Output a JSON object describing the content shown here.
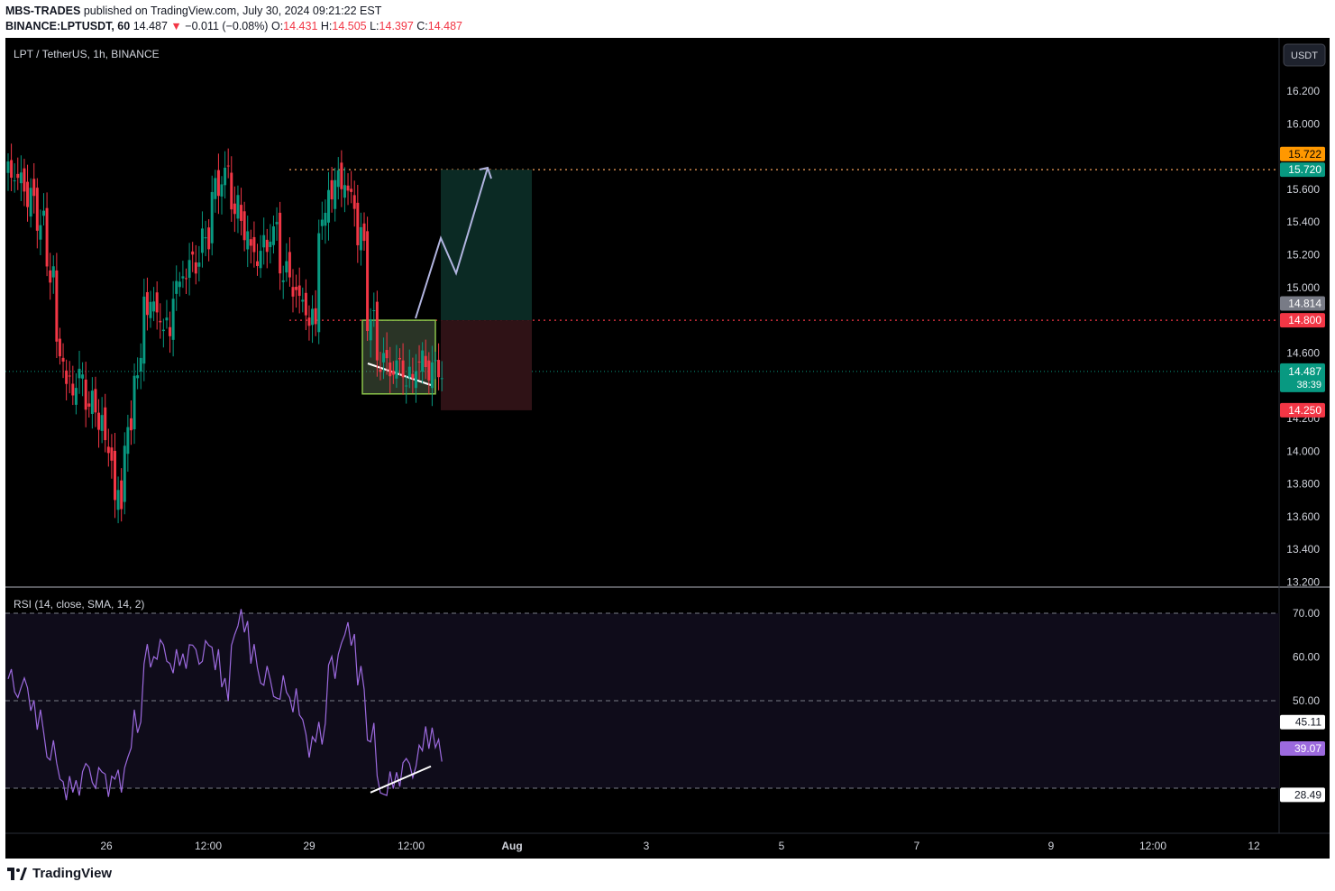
{
  "header": {
    "author": "MBS-TRADES",
    "published": "published on TradingView.com, July 30, 2024 09:21:22 EST",
    "symbol": "BINANCE:LPTUSDT, 60",
    "last": "14.487",
    "arrow": "▼",
    "change": "−0.011 (−0.08%)",
    "o_label": "O:",
    "o": "14.431",
    "h_label": "H:",
    "h": "14.505",
    "l_label": "L:",
    "l": "14.397",
    "c_label": "C:",
    "c": "14.487"
  },
  "chart": {
    "title": "LPT / TetherUS, 1h, BINANCE",
    "currency_button": "USDT",
    "colors": {
      "up": "#089981",
      "down": "#f23645",
      "rsi": "#9c6ade",
      "bg": "#000000"
    },
    "price_ticks": [
      "16.200",
      "16.000",
      "15.600",
      "15.400",
      "15.200",
      "15.000",
      "14.600",
      "14.200",
      "14.000",
      "13.800",
      "13.600",
      "13.400",
      "13.200"
    ],
    "price_ticks_values": [
      16.2,
      16.0,
      15.6,
      15.4,
      15.2,
      15.0,
      14.6,
      14.2,
      14.0,
      13.8,
      13.6,
      13.4,
      13.2
    ],
    "badges": [
      {
        "text": "15.722",
        "value": 15.722,
        "color": "#ff9800",
        "fg": "#000000"
      },
      {
        "text": "15.720",
        "value": 15.72,
        "color": "#089981",
        "fg": "#ffffff"
      },
      {
        "text": "14.814",
        "value": 14.814,
        "color": "#787b86",
        "fg": "#ffffff"
      },
      {
        "text": "14.800",
        "value": 14.8,
        "color": "#f23645",
        "fg": "#ffffff"
      },
      {
        "text": "14.250",
        "value": 14.25,
        "color": "#f23645",
        "fg": "#ffffff"
      }
    ],
    "last_price_badge": {
      "text": "14.487",
      "countdown": "38:39",
      "value": 14.487,
      "color": "#089981"
    },
    "rsi_title": "RSI (14, close, SMA, 14, 2)",
    "rsi_ticks": [
      "70.00",
      "60.00",
      "50.00"
    ],
    "rsi_ticks_values": [
      70,
      60,
      50
    ],
    "rsi_badges": [
      {
        "text": "45.11",
        "value": 45.11,
        "color": "#ffffff",
        "fg": "#131722"
      },
      {
        "text": "39.07",
        "value": 39.07,
        "color": "#9c6ade",
        "fg": "#ffffff"
      },
      {
        "text": "28.49",
        "value": 28.49,
        "color": "#ffffff",
        "fg": "#131722"
      }
    ],
    "time_labels": [
      "26",
      "12:00",
      "29",
      "12:00",
      "Aug",
      "3",
      "5",
      "7",
      "9",
      "12:00",
      "12"
    ],
    "time_labels_bold": [
      false,
      false,
      false,
      false,
      true,
      false,
      false,
      false,
      false,
      false,
      false
    ]
  },
  "chart_data": {
    "type": "candlestick",
    "price_levels": {
      "target": 15.72,
      "entry": 14.8,
      "stop": 14.25,
      "last": 14.487
    },
    "candles_approx": [
      15.7,
      15.65,
      15.55,
      15.4,
      15.1,
      14.6,
      14.4,
      14.45,
      14.3,
      14.2,
      14.0,
      13.7,
      14.1,
      14.5,
      14.9,
      14.85,
      14.75,
      15.0,
      15.1,
      15.15,
      15.3,
      15.6,
      15.7,
      15.5,
      15.35,
      15.2,
      15.25,
      15.35,
      15.1,
      15.0,
      14.9,
      14.8,
      15.4,
      15.6,
      15.65,
      15.55,
      15.3,
      14.8,
      14.55,
      14.5,
      14.52,
      14.45,
      14.55,
      14.5,
      14.487
    ],
    "rsi_approx": [
      55,
      53,
      50,
      45,
      38,
      33,
      30,
      31,
      34,
      33,
      31,
      32,
      37,
      45,
      60,
      61,
      60,
      59,
      60,
      61,
      62,
      60,
      53,
      65,
      68,
      60,
      55,
      52,
      53,
      50,
      45,
      40,
      43,
      58,
      63,
      65,
      55,
      42,
      30,
      31,
      33,
      35,
      38,
      42,
      39.07
    ]
  },
  "footer": {
    "brand": "TradingView"
  }
}
